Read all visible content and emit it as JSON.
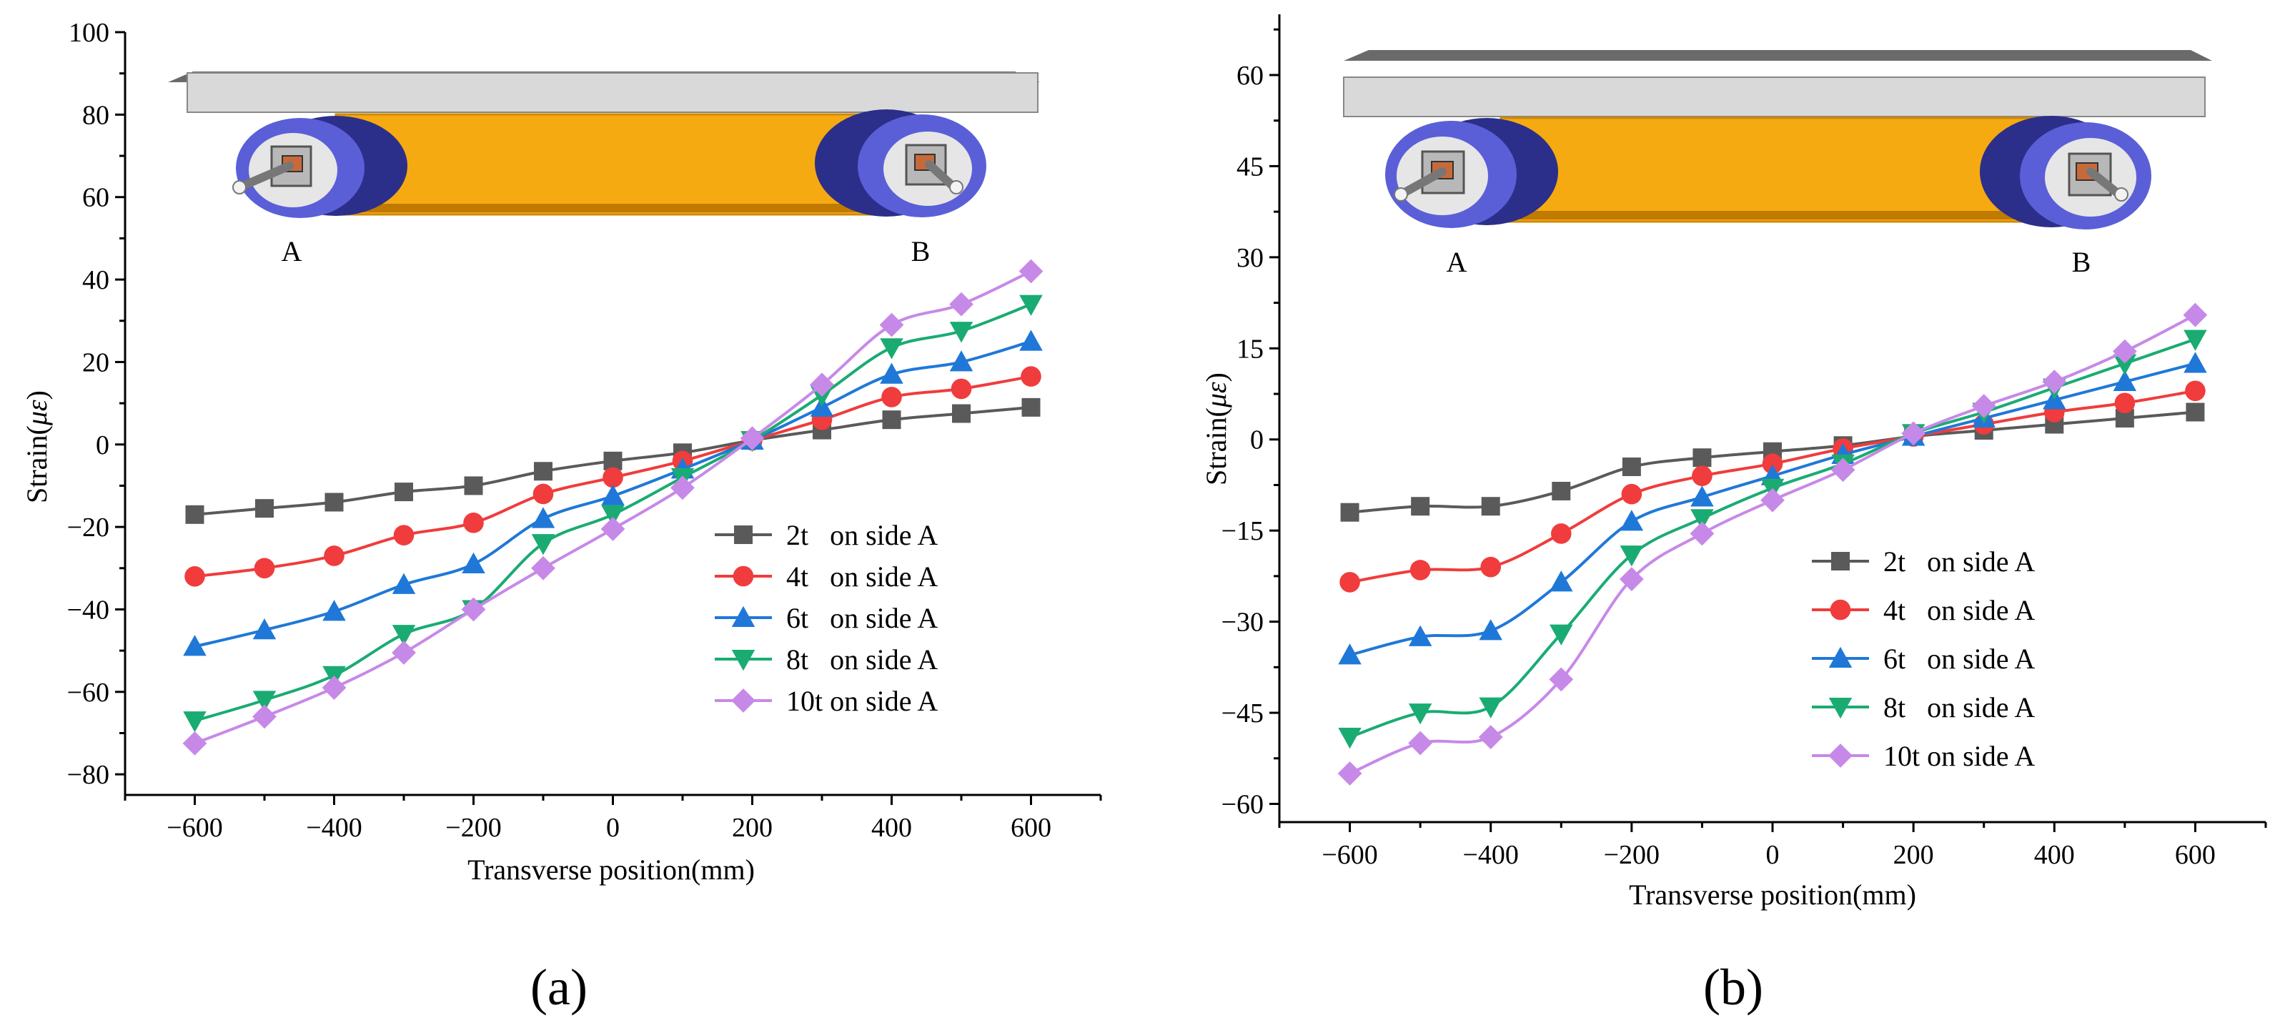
{
  "figure": {
    "panel_labels": [
      "(a)",
      "(b)"
    ]
  },
  "chart_data": [
    {
      "type": "line",
      "panel": "(a)",
      "xlabel": "Transverse position(mm)",
      "ylabel_text": "Strain(",
      "ylabel_symbol": "με",
      "ylabel_close": ")",
      "xlim": [
        -700,
        700
      ],
      "ylim": [
        -85,
        100
      ],
      "xticks": [
        -600,
        -400,
        -200,
        0,
        200,
        400,
        600
      ],
      "yticks": [
        -80,
        -60,
        -40,
        -20,
        0,
        20,
        40,
        60,
        80,
        100
      ],
      "x": [
        -600,
        -500,
        -400,
        -300,
        -200,
        -100,
        0,
        100,
        200,
        300,
        400,
        500,
        600
      ],
      "inset": {
        "left_label": "A",
        "right_label": "B"
      },
      "legend_position": "center-right",
      "series": [
        {
          "name": "2t   on side A",
          "marker": "square",
          "color": "#5a5a5a",
          "values": [
            -17,
            -15.5,
            -14,
            -11.5,
            -10,
            -6.5,
            -4,
            -2,
            1,
            3.5,
            6,
            7.5,
            9
          ]
        },
        {
          "name": "4t   on side A",
          "marker": "circle",
          "color": "#f03c3c",
          "values": [
            -32,
            -30,
            -27,
            -22,
            -19,
            -12,
            -8,
            -4,
            1,
            6,
            11.5,
            13.5,
            16.5
          ]
        },
        {
          "name": "6t   on side A",
          "marker": "triangle-up",
          "color": "#1f78d8",
          "values": [
            -49,
            -45,
            -40.5,
            -34,
            -29,
            -18,
            -12.5,
            -6,
            1,
            9,
            17,
            20,
            25
          ]
        },
        {
          "name": "8t   on side A",
          "marker": "triangle-down",
          "color": "#1aab73",
          "values": [
            -67,
            -62,
            -56,
            -46,
            -40,
            -24,
            -17,
            -8,
            1,
            12,
            23.5,
            27.5,
            34
          ]
        },
        {
          "name": "10t on side A",
          "marker": "diamond",
          "color": "#c789e8",
          "values": [
            -72.5,
            -66,
            -59,
            -50.5,
            -40,
            -30,
            -20.5,
            -10.5,
            1.5,
            14.5,
            29,
            34,
            42
          ]
        }
      ]
    },
    {
      "type": "line",
      "panel": "(b)",
      "xlabel": "Transverse position(mm)",
      "ylabel_text": "Strain(",
      "ylabel_symbol": "με",
      "ylabel_close": ")",
      "xlim": [
        -700,
        700
      ],
      "ylim": [
        -63,
        70
      ],
      "xticks": [
        -600,
        -400,
        -200,
        0,
        200,
        400,
        600
      ],
      "yticks": [
        -60,
        -45,
        -30,
        -15,
        0,
        15,
        30,
        45,
        60
      ],
      "x": [
        -600,
        -500,
        -400,
        -300,
        -200,
        -100,
        0,
        100,
        200,
        300,
        400,
        500,
        600
      ],
      "inset": {
        "left_label": "A",
        "right_label": "B"
      },
      "legend_position": "lower-right",
      "series": [
        {
          "name": "2t   on side A",
          "marker": "square",
          "color": "#5a5a5a",
          "values": [
            -12,
            -11,
            -11,
            -8.5,
            -4.5,
            -3,
            -2,
            -1,
            0.5,
            1.5,
            2.5,
            3.5,
            4.5
          ]
        },
        {
          "name": "4t   on side A",
          "marker": "circle",
          "color": "#f03c3c",
          "values": [
            -23.5,
            -21.5,
            -21,
            -15.5,
            -9,
            -6,
            -4,
            -1.5,
            0.5,
            2.5,
            4.5,
            6,
            8
          ]
        },
        {
          "name": "6t   on side A",
          "marker": "triangle-up",
          "color": "#1f78d8",
          "values": [
            -35.5,
            -32.5,
            -31.5,
            -23.5,
            -13.5,
            -9.5,
            -6,
            -2.5,
            0.5,
            3.5,
            6.5,
            9.5,
            12.5
          ]
        },
        {
          "name": "8t   on side A",
          "marker": "triangle-down",
          "color": "#1aab73",
          "values": [
            -49,
            -45,
            -44,
            -32,
            -19,
            -13,
            -8,
            -4,
            1,
            4.5,
            8.5,
            12.5,
            16.5
          ]
        },
        {
          "name": "10t on side A",
          "marker": "diamond",
          "color": "#c789e8",
          "values": [
            -55,
            -50,
            -49,
            -39.5,
            -23,
            -15.5,
            -10,
            -5,
            1,
            5.5,
            9.5,
            14.5,
            20.5
          ]
        }
      ]
    }
  ]
}
